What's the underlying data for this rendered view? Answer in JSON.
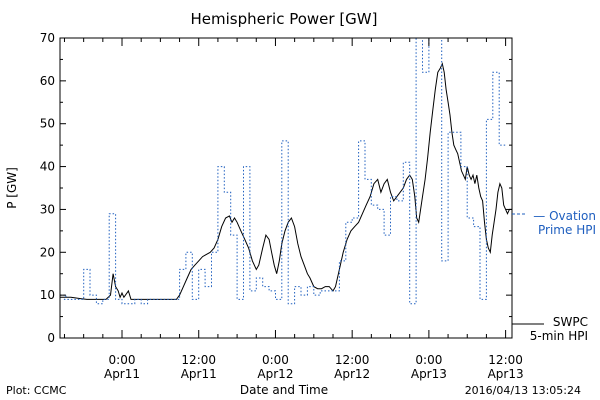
{
  "chart_data": {
    "type": "line",
    "title": "Hemispheric Power [GW]",
    "xlabel": "Date and Time",
    "ylabel": "P [GW]",
    "ylim": [
      0,
      70
    ],
    "yticks": [
      0,
      10,
      20,
      30,
      40,
      50,
      60,
      70
    ],
    "x_unit": "hours since 2016/04/10 00:00 UT",
    "xlim": [
      14.3,
      85.0
    ],
    "xticks": [
      {
        "x": 24,
        "label": [
          "0:00",
          "Apr11"
        ]
      },
      {
        "x": 36,
        "label": [
          "12:00",
          "Apr11"
        ]
      },
      {
        "x": 48,
        "label": [
          "0:00",
          "Apr12"
        ]
      },
      {
        "x": 60,
        "label": [
          "12:00",
          "Apr12"
        ]
      },
      {
        "x": 72,
        "label": [
          "0:00",
          "Apr13"
        ]
      },
      {
        "x": 84,
        "label": [
          "12:00",
          "Apr13"
        ]
      }
    ],
    "grid": false,
    "legend_position": "right",
    "series": [
      {
        "name": "SWPC 5-min HPI",
        "color": "#000000",
        "style": "solid",
        "legend_lines": [
          "SWPC",
          "5-min HPI"
        ],
        "points": [
          [
            14.3,
            9.5
          ],
          [
            16.0,
            9.5
          ],
          [
            17.5,
            9.2
          ],
          [
            18.5,
            9.0
          ],
          [
            20.0,
            9.0
          ],
          [
            21.5,
            9.0
          ],
          [
            22.2,
            10
          ],
          [
            22.6,
            15
          ],
          [
            23.0,
            12
          ],
          [
            23.4,
            11
          ],
          [
            23.7,
            9.5
          ],
          [
            24.0,
            10.5
          ],
          [
            24.3,
            9.5
          ],
          [
            25.0,
            11
          ],
          [
            25.4,
            9.0
          ],
          [
            26.0,
            9.0
          ],
          [
            27.0,
            9.0
          ],
          [
            29.0,
            9.0
          ],
          [
            31.0,
            9.0
          ],
          [
            32.5,
            9.0
          ],
          [
            33.0,
            10
          ],
          [
            33.6,
            12
          ],
          [
            34.2,
            14
          ],
          [
            34.8,
            16
          ],
          [
            35.4,
            17
          ],
          [
            36.0,
            18
          ],
          [
            36.6,
            19
          ],
          [
            37.2,
            19.5
          ],
          [
            37.8,
            20
          ],
          [
            38.4,
            21
          ],
          [
            39.0,
            23
          ],
          [
            39.6,
            26
          ],
          [
            40.2,
            28
          ],
          [
            40.8,
            28.5
          ],
          [
            41.2,
            27
          ],
          [
            41.6,
            28
          ],
          [
            42.0,
            27
          ],
          [
            42.6,
            25
          ],
          [
            43.2,
            23
          ],
          [
            43.8,
            21
          ],
          [
            44.4,
            18
          ],
          [
            45.0,
            16
          ],
          [
            45.4,
            17
          ],
          [
            46.0,
            21
          ],
          [
            46.5,
            24
          ],
          [
            47.0,
            23
          ],
          [
            47.4,
            20
          ],
          [
            47.8,
            17
          ],
          [
            48.2,
            15
          ],
          [
            48.6,
            18
          ],
          [
            49.0,
            22
          ],
          [
            49.5,
            25
          ],
          [
            50.0,
            27
          ],
          [
            50.5,
            28
          ],
          [
            51.0,
            26
          ],
          [
            51.5,
            22
          ],
          [
            52.0,
            19
          ],
          [
            52.5,
            17
          ],
          [
            53.0,
            15
          ],
          [
            53.4,
            14
          ],
          [
            54.0,
            12
          ],
          [
            54.6,
            11.5
          ],
          [
            55.2,
            11.5
          ],
          [
            55.8,
            12
          ],
          [
            56.4,
            12
          ],
          [
            57.0,
            11
          ],
          [
            57.4,
            12
          ],
          [
            58.0,
            16
          ],
          [
            58.6,
            20
          ],
          [
            59.2,
            23
          ],
          [
            59.8,
            25
          ],
          [
            60.4,
            26
          ],
          [
            61.0,
            27
          ],
          [
            61.6,
            29
          ],
          [
            62.2,
            31
          ],
          [
            62.8,
            33
          ],
          [
            63.4,
            36
          ],
          [
            64.0,
            37
          ],
          [
            64.5,
            34
          ],
          [
            65.0,
            36
          ],
          [
            65.5,
            37
          ],
          [
            66.0,
            34
          ],
          [
            66.5,
            32
          ],
          [
            67.0,
            33
          ],
          [
            67.5,
            34
          ],
          [
            68.0,
            35
          ],
          [
            68.5,
            37
          ],
          [
            69.0,
            38
          ],
          [
            69.4,
            37
          ],
          [
            69.8,
            33
          ],
          [
            70.1,
            28
          ],
          [
            70.4,
            27
          ],
          [
            70.7,
            30
          ],
          [
            71.0,
            33
          ],
          [
            71.4,
            37
          ],
          [
            71.8,
            42
          ],
          [
            72.2,
            48
          ],
          [
            72.6,
            53
          ],
          [
            73.0,
            58
          ],
          [
            73.4,
            62
          ],
          [
            73.8,
            63
          ],
          [
            74.1,
            64
          ],
          [
            74.4,
            62
          ],
          [
            74.7,
            58
          ],
          [
            75.0,
            55
          ],
          [
            75.3,
            52
          ],
          [
            75.6,
            48
          ],
          [
            75.9,
            45
          ],
          [
            76.2,
            44
          ],
          [
            76.5,
            43
          ],
          [
            76.8,
            41
          ],
          [
            77.1,
            39
          ],
          [
            77.4,
            38
          ],
          [
            77.7,
            37
          ],
          [
            78.0,
            40
          ],
          [
            78.3,
            38
          ],
          [
            78.6,
            37
          ],
          [
            78.9,
            38
          ],
          [
            79.2,
            36
          ],
          [
            79.5,
            38
          ],
          [
            79.8,
            35
          ],
          [
            80.1,
            33
          ],
          [
            80.4,
            32
          ],
          [
            80.7,
            27
          ],
          [
            81.0,
            23
          ],
          [
            81.3,
            21
          ],
          [
            81.6,
            20
          ],
          [
            81.9,
            24
          ],
          [
            82.2,
            27
          ],
          [
            82.5,
            30
          ],
          [
            82.8,
            34
          ],
          [
            83.1,
            36
          ],
          [
            83.4,
            35
          ],
          [
            83.7,
            31
          ],
          [
            84.0,
            30
          ],
          [
            84.3,
            29
          ],
          [
            84.6,
            30
          ],
          [
            85.0,
            30
          ]
        ]
      },
      {
        "name": "Ovation Prime HPI",
        "color": "#1f5fbf",
        "style": "dotted",
        "legend_lines": [
          "— Ovation",
          "Prime HPI"
        ],
        "step_width": 1.0,
        "points": [
          [
            14.3,
            10
          ],
          [
            15.0,
            9
          ],
          [
            16.0,
            9
          ],
          [
            17.0,
            9
          ],
          [
            18.0,
            16
          ],
          [
            19.0,
            10
          ],
          [
            20.0,
            8
          ],
          [
            21.0,
            9
          ],
          [
            22.0,
            29
          ],
          [
            23.0,
            9
          ],
          [
            24.0,
            8
          ],
          [
            25.0,
            8
          ],
          [
            26.0,
            9
          ],
          [
            27.0,
            8
          ],
          [
            28.0,
            9
          ],
          [
            29.0,
            9
          ],
          [
            30.0,
            9
          ],
          [
            31.0,
            9
          ],
          [
            32.0,
            9
          ],
          [
            33.0,
            16
          ],
          [
            34.0,
            20
          ],
          [
            35.0,
            9
          ],
          [
            36.0,
            16
          ],
          [
            37.0,
            12
          ],
          [
            38.0,
            20
          ],
          [
            39.0,
            40
          ],
          [
            40.0,
            34
          ],
          [
            41.0,
            24
          ],
          [
            42.0,
            9
          ],
          [
            43.0,
            40
          ],
          [
            44.0,
            11
          ],
          [
            45.0,
            14
          ],
          [
            46.0,
            12
          ],
          [
            47.0,
            11
          ],
          [
            48.0,
            9
          ],
          [
            49.0,
            46
          ],
          [
            50.0,
            8
          ],
          [
            51.0,
            12
          ],
          [
            52.0,
            10
          ],
          [
            53.0,
            12
          ],
          [
            54.0,
            10
          ],
          [
            55.0,
            11
          ],
          [
            56.0,
            11
          ],
          [
            57.0,
            11
          ],
          [
            58.0,
            18
          ],
          [
            59.0,
            27
          ],
          [
            60.0,
            28
          ],
          [
            61.0,
            46
          ],
          [
            62.0,
            37
          ],
          [
            63.0,
            31
          ],
          [
            64.0,
            30
          ],
          [
            65.0,
            24
          ],
          [
            66.0,
            33
          ],
          [
            67.0,
            32
          ],
          [
            68.0,
            41
          ],
          [
            69.0,
            8
          ],
          [
            70.0,
            70
          ],
          [
            71.0,
            62
          ],
          [
            72.0,
            70
          ],
          [
            73.0,
            70
          ],
          [
            74.0,
            18
          ],
          [
            75.0,
            48
          ],
          [
            76.0,
            48
          ],
          [
            77.0,
            40
          ],
          [
            78.0,
            28
          ],
          [
            79.0,
            26
          ],
          [
            80.0,
            9
          ],
          [
            81.0,
            51
          ],
          [
            82.0,
            62
          ],
          [
            83.0,
            45
          ]
        ]
      }
    ]
  },
  "footer": {
    "left": "Plot: CCMC",
    "right": "2016/04/13 13:05:24"
  }
}
